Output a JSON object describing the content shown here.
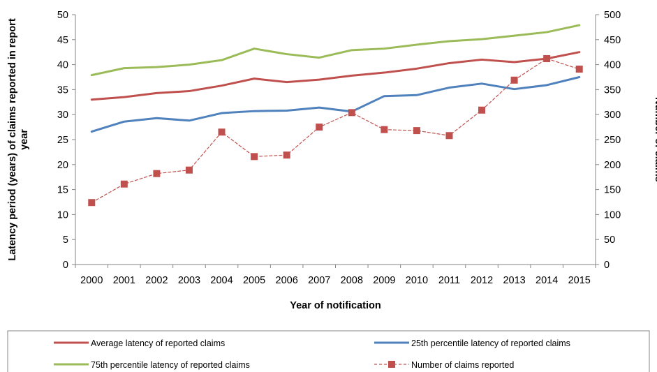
{
  "chart_data": {
    "type": "line",
    "categories": [
      "2000",
      "2001",
      "2002",
      "2003",
      "2004",
      "2005",
      "2006",
      "2007",
      "2008",
      "2009",
      "2010",
      "2011",
      "2012",
      "2013",
      "2014",
      "2015"
    ],
    "xlabel": "Year of notification",
    "ylabel_left": [
      "Latency period (years) of claims reported in report",
      "year"
    ],
    "ylabel_right": "Number of claims",
    "ylim_left": [
      0,
      50
    ],
    "ylim_right": [
      0,
      500
    ],
    "yticks_left": [
      "0",
      "5",
      "10",
      "15",
      "20",
      "25",
      "30",
      "35",
      "40",
      "45",
      "50"
    ],
    "yticks_right": [
      "0",
      "50",
      "100",
      "150",
      "200",
      "250",
      "300",
      "350",
      "400",
      "450",
      "500"
    ],
    "grid": false,
    "legend_position": "bottom",
    "series": [
      {
        "name": "Average latency of reported claims",
        "axis": "left",
        "color": "#c0504d",
        "style": "solid",
        "values": [
          33.0,
          33.5,
          34.3,
          34.7,
          35.8,
          37.2,
          36.5,
          37.0,
          37.8,
          38.4,
          39.2,
          40.3,
          41.0,
          40.5,
          41.2,
          42.5
        ]
      },
      {
        "name": "25th percentile latency of reported claims",
        "axis": "left",
        "color": "#4f81bd",
        "style": "solid",
        "values": [
          26.6,
          28.6,
          29.3,
          28.8,
          30.3,
          30.7,
          30.8,
          31.4,
          30.6,
          33.7,
          33.9,
          35.4,
          36.2,
          35.1,
          35.9,
          37.5
        ]
      },
      {
        "name": "75th percentile latency of reported claims",
        "axis": "left",
        "color": "#9bbb59",
        "style": "solid",
        "values": [
          37.9,
          39.3,
          39.5,
          40.0,
          40.9,
          43.2,
          42.1,
          41.4,
          42.9,
          43.2,
          44.0,
          44.7,
          45.1,
          45.8,
          46.5,
          47.9
        ]
      },
      {
        "name": "Number of claims reported",
        "axis": "right",
        "color": "#c0504d",
        "style": "dashed-square-markers",
        "values": [
          124,
          161,
          182,
          189,
          265,
          216,
          219,
          275,
          304,
          270,
          268,
          258,
          309,
          369,
          412,
          391
        ]
      }
    ]
  }
}
